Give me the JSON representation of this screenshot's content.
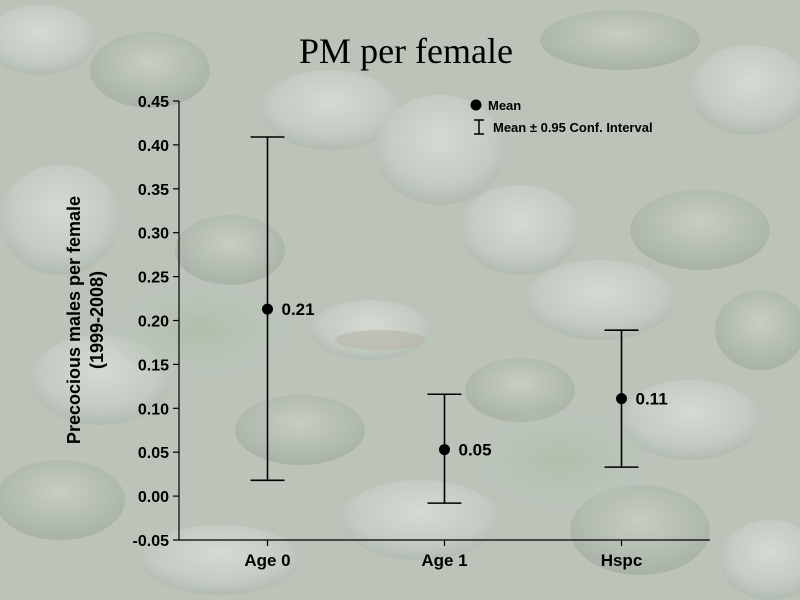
{
  "chart_data": {
    "type": "errorbar",
    "title": "PM per female",
    "ylabel_lines": [
      "Precocious males per female",
      "(1999-2008)"
    ],
    "xlabel": "",
    "categories": [
      "Age 0",
      "Age 1",
      "Hspc"
    ],
    "series": [
      {
        "mean": [
          0.213,
          0.053,
          0.111
        ],
        "lower": [
          0.018,
          -0.008,
          0.033
        ],
        "upper": [
          0.409,
          0.116,
          0.189
        ],
        "value_labels": [
          "0.21",
          "0.05",
          "0.11"
        ]
      }
    ],
    "ylim": [
      -0.05,
      0.45
    ],
    "yticks": [
      -0.05,
      0.0,
      0.05,
      0.1,
      0.15,
      0.2,
      0.25,
      0.3,
      0.35,
      0.4,
      0.45
    ],
    "ytick_labels": [
      "-0.05",
      "0.00",
      "0.05",
      "0.10",
      "0.15",
      "0.20",
      "0.25",
      "0.30",
      "0.35",
      "0.40",
      "0.45"
    ],
    "legend": {
      "position": "top-right",
      "entries": [
        {
          "label": "Mean",
          "marker": "circle"
        },
        {
          "label": "Mean ± 0.95 Conf. Interval",
          "marker": "errorbar"
        }
      ]
    },
    "grid": false,
    "colors": {
      "marks": "#000000",
      "background": "#b9c2b8"
    }
  }
}
